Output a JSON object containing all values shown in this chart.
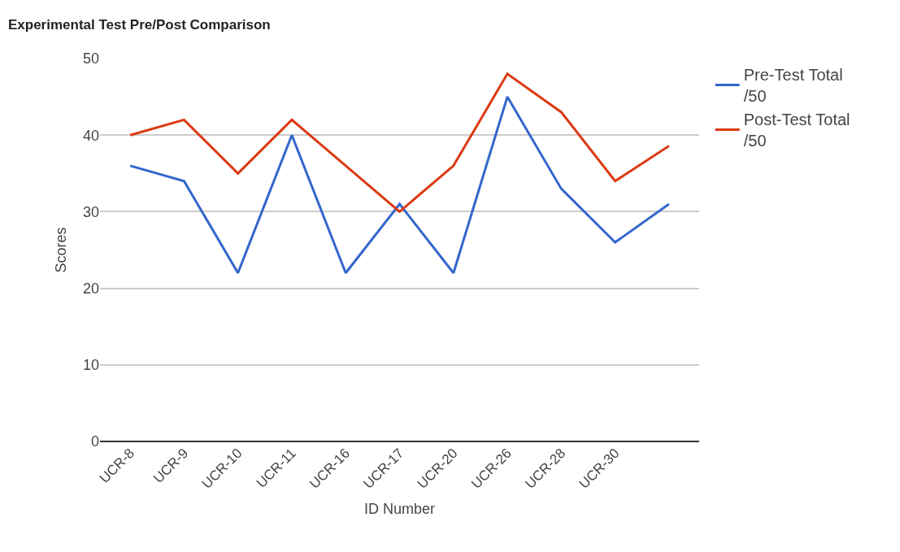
{
  "chart_data": {
    "type": "line",
    "title": "Experimental Test Pre/Post Comparison",
    "xlabel": "ID Number",
    "ylabel": "Scores",
    "categories": [
      "UCR-8",
      "UCR-9",
      "UCR-10",
      "UCR-11",
      "UCR-16",
      "UCR-17",
      "UCR-20",
      "UCR-26",
      "UCR-28",
      "UCR-30",
      null
    ],
    "series": [
      {
        "name": "Pre-Test Total /50",
        "color": "#3366cc",
        "values": [
          36,
          34,
          22,
          40,
          22,
          31,
          22,
          45,
          33,
          26,
          31
        ]
      },
      {
        "name": "Post-Test Total /50",
        "color": "#dc3912",
        "values": [
          40,
          42,
          35,
          42,
          36,
          30,
          36,
          48,
          43,
          34,
          38.6
        ]
      }
    ],
    "ylim": [
      0,
      50
    ],
    "yticks": [
      0,
      10,
      20,
      30,
      40,
      50
    ],
    "grid": "y",
    "legend": "top right",
    "marker": "none",
    "line_style": "solid"
  }
}
